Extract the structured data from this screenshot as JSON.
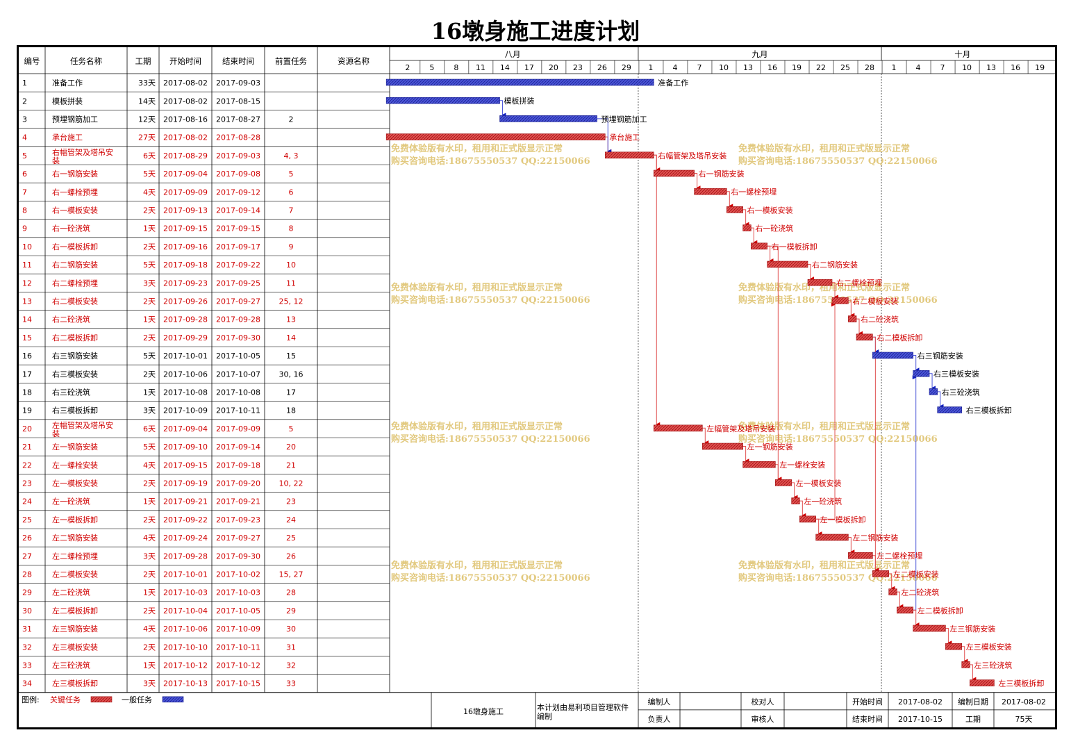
{
  "title": "16墩身施工进度计划",
  "columns": [
    "编号",
    "任务名称",
    "工期",
    "开始时间",
    "结束时间",
    "前置任务",
    "资源名称"
  ],
  "months": [
    "八月",
    "九月",
    "十月"
  ],
  "day_ticks": [
    "2",
    "5",
    "8",
    "11",
    "14",
    "17",
    "20",
    "23",
    "26",
    "29",
    "1",
    "4",
    "7",
    "10",
    "13",
    "16",
    "19",
    "22",
    "25",
    "28",
    "1",
    "4",
    "7",
    "10",
    "13",
    "16",
    "19"
  ],
  "colors": {
    "critical": "#e05050",
    "normal": "#4a55d8",
    "critical_text": "#d00000",
    "normal_text": "#000000",
    "watermark": "#e2c97f"
  },
  "watermark": {
    "line1": "免费体验版有水印，租用和正式版显示正常",
    "line2": "购买咨询电话:18675550537 QQ:22150066"
  },
  "chart_data": {
    "type": "gantt",
    "title": "16墩身施工进度计划",
    "x_range": [
      "2017-08-01",
      "2017-10-21"
    ],
    "tasks": [
      {
        "id": "1",
        "name": "准备工作",
        "dur": "33天",
        "start": "2017-08-02",
        "end": "2017-09-03",
        "pred": "",
        "critical": false
      },
      {
        "id": "2",
        "name": "模板拼装",
        "dur": "14天",
        "start": "2017-08-02",
        "end": "2017-08-15",
        "pred": "",
        "critical": false
      },
      {
        "id": "3",
        "name": "预埋钢筋加工",
        "dur": "12天",
        "start": "2017-08-16",
        "end": "2017-08-27",
        "pred": "2",
        "critical": false
      },
      {
        "id": "4",
        "name": "承台施工",
        "dur": "27天",
        "start": "2017-08-02",
        "end": "2017-08-28",
        "pred": "",
        "critical": true
      },
      {
        "id": "5",
        "name": "右幅管架及塔吊安装",
        "dur": "6天",
        "start": "2017-08-29",
        "end": "2017-09-03",
        "pred": "4, 3",
        "critical": true
      },
      {
        "id": "6",
        "name": "右一钢筋安装",
        "dur": "5天",
        "start": "2017-09-04",
        "end": "2017-09-08",
        "pred": "5",
        "critical": true
      },
      {
        "id": "7",
        "name": "右一螺栓预埋",
        "dur": "4天",
        "start": "2017-09-09",
        "end": "2017-09-12",
        "pred": "6",
        "critical": true
      },
      {
        "id": "8",
        "name": "右一模板安装",
        "dur": "2天",
        "start": "2017-09-13",
        "end": "2017-09-14",
        "pred": "7",
        "critical": true
      },
      {
        "id": "9",
        "name": "右一砼浇筑",
        "dur": "1天",
        "start": "2017-09-15",
        "end": "2017-09-15",
        "pred": "8",
        "critical": true
      },
      {
        "id": "10",
        "name": "右一模板拆卸",
        "dur": "2天",
        "start": "2017-09-16",
        "end": "2017-09-17",
        "pred": "9",
        "critical": true
      },
      {
        "id": "11",
        "name": "右二钢筋安装",
        "dur": "5天",
        "start": "2017-09-18",
        "end": "2017-09-22",
        "pred": "10",
        "critical": true
      },
      {
        "id": "12",
        "name": "右二螺栓预埋",
        "dur": "3天",
        "start": "2017-09-23",
        "end": "2017-09-25",
        "pred": "11",
        "critical": true
      },
      {
        "id": "13",
        "name": "右二模板安装",
        "dur": "2天",
        "start": "2017-09-26",
        "end": "2017-09-27",
        "pred": "25, 12",
        "critical": true
      },
      {
        "id": "14",
        "name": "右二砼浇筑",
        "dur": "1天",
        "start": "2017-09-28",
        "end": "2017-09-28",
        "pred": "13",
        "critical": true
      },
      {
        "id": "15",
        "name": "右二模板拆卸",
        "dur": "2天",
        "start": "2017-09-29",
        "end": "2017-09-30",
        "pred": "14",
        "critical": true
      },
      {
        "id": "16",
        "name": "右三钢筋安装",
        "dur": "5天",
        "start": "2017-10-01",
        "end": "2017-10-05",
        "pred": "15",
        "critical": false
      },
      {
        "id": "17",
        "name": "右三模板安装",
        "dur": "2天",
        "start": "2017-10-06",
        "end": "2017-10-07",
        "pred": "30, 16",
        "critical": false
      },
      {
        "id": "18",
        "name": "右三砼浇筑",
        "dur": "1天",
        "start": "2017-10-08",
        "end": "2017-10-08",
        "pred": "17",
        "critical": false
      },
      {
        "id": "19",
        "name": "右三模板拆卸",
        "dur": "3天",
        "start": "2017-10-09",
        "end": "2017-10-11",
        "pred": "18",
        "critical": false
      },
      {
        "id": "20",
        "name": "左幅管架及塔吊安装",
        "dur": "6天",
        "start": "2017-09-04",
        "end": "2017-09-09",
        "pred": "5",
        "critical": true
      },
      {
        "id": "21",
        "name": "左一钢筋安装",
        "dur": "5天",
        "start": "2017-09-10",
        "end": "2017-09-14",
        "pred": "20",
        "critical": true
      },
      {
        "id": "22",
        "name": "左一螺栓安装",
        "dur": "4天",
        "start": "2017-09-15",
        "end": "2017-09-18",
        "pred": "21",
        "critical": true
      },
      {
        "id": "23",
        "name": "左一模板安装",
        "dur": "2天",
        "start": "2017-09-19",
        "end": "2017-09-20",
        "pred": "10, 22",
        "critical": true
      },
      {
        "id": "24",
        "name": "左一砼浇筑",
        "dur": "1天",
        "start": "2017-09-21",
        "end": "2017-09-21",
        "pred": "23",
        "critical": true
      },
      {
        "id": "25",
        "name": "左一模板拆卸",
        "dur": "2天",
        "start": "2017-09-22",
        "end": "2017-09-23",
        "pred": "24",
        "critical": true
      },
      {
        "id": "26",
        "name": "左二钢筋安装",
        "dur": "4天",
        "start": "2017-09-24",
        "end": "2017-09-27",
        "pred": "25",
        "critical": true
      },
      {
        "id": "27",
        "name": "左二螺栓预埋",
        "dur": "3天",
        "start": "2017-09-28",
        "end": "2017-09-30",
        "pred": "26",
        "critical": true
      },
      {
        "id": "28",
        "name": "左二模板安装",
        "dur": "2天",
        "start": "2017-10-01",
        "end": "2017-10-02",
        "pred": "15, 27",
        "critical": true
      },
      {
        "id": "29",
        "name": "左二砼浇筑",
        "dur": "1天",
        "start": "2017-10-03",
        "end": "2017-10-03",
        "pred": "28",
        "critical": true
      },
      {
        "id": "30",
        "name": "左二模板拆卸",
        "dur": "2天",
        "start": "2017-10-04",
        "end": "2017-10-05",
        "pred": "29",
        "critical": true
      },
      {
        "id": "31",
        "name": "左三钢筋安装",
        "dur": "4天",
        "start": "2017-10-06",
        "end": "2017-10-09",
        "pred": "30",
        "critical": true
      },
      {
        "id": "32",
        "name": "左三模板安装",
        "dur": "2天",
        "start": "2017-10-10",
        "end": "2017-10-11",
        "pred": "31",
        "critical": true
      },
      {
        "id": "33",
        "name": "左三砼浇筑",
        "dur": "1天",
        "start": "2017-10-12",
        "end": "2017-10-12",
        "pred": "32",
        "critical": true
      },
      {
        "id": "34",
        "name": "左三模板拆卸",
        "dur": "3天",
        "start": "2017-10-13",
        "end": "2017-10-15",
        "pred": "33",
        "critical": true
      }
    ]
  },
  "footer": {
    "legend_label": "图例:",
    "critical_label": "关键任务",
    "normal_label": "一般任务",
    "project": "16墩身施工",
    "software_note_1": "本计划由易利项目管理软件",
    "software_note_2": "编制",
    "editor_label": "编制人",
    "checker_label": "校对人",
    "leader_label": "负责人",
    "reviewer_label": "审核人",
    "start_label": "开始时间",
    "start_value": "2017-08-02",
    "end_label": "结束时间",
    "end_value": "2017-10-15",
    "date_label": "编制日期",
    "date_value": "2017-08-02",
    "duration_label": "工期",
    "duration_value": "75天"
  }
}
